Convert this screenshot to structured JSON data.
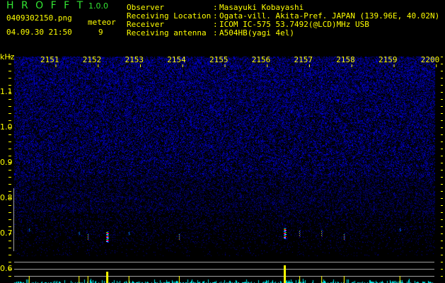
{
  "header": {
    "app_name": "H R O F F T",
    "version": "1.0.0",
    "filename": "0409302150.png",
    "datetime": "04.09.30 21:50",
    "meteor_label": "meteor",
    "meteor_count": "9"
  },
  "info": [
    {
      "label": "Observer",
      "value": "Masayuki Kobayashi"
    },
    {
      "label": "Receiving Location",
      "value": "Ogata-vill. Akita-Pref. JAPAN (139.96E, 40.02N)"
    },
    {
      "label": "Receiver",
      "value": "ICOM IC-575 53.7492(@LCD)MHz USB"
    },
    {
      "label": "Receiving antenna",
      "value": "A504HB(yagi 4el)"
    }
  ],
  "colors": {
    "text": "#ffff00",
    "title": "#33e533",
    "noise": "#1a1aff",
    "strength_bar": "#ffff00",
    "background_bar": "#00e5e5",
    "grid": "#a0a0a0"
  },
  "chart_data": {
    "type": "heatmap",
    "ylabel": "kHz",
    "x_ticks": [
      "2151",
      "2152",
      "2153",
      "2154",
      "2155",
      "2156",
      "2157",
      "2158",
      "2159",
      "2200"
    ],
    "y_ticks": [
      "1.1",
      "1.0",
      "0.9",
      "0.8",
      "0.7",
      "0.6"
    ],
    "ylim": [
      0.56,
      1.2
    ],
    "echoes": [
      {
        "time": 2150.36,
        "freq": 0.71,
        "strength": "weak"
      },
      {
        "time": 2151.54,
        "freq": 0.7,
        "strength": "weak"
      },
      {
        "time": 2151.75,
        "freq": 0.69,
        "strength": "medium"
      },
      {
        "time": 2152.19,
        "freq": 0.69,
        "strength": "strong"
      },
      {
        "time": 2152.72,
        "freq": 0.7,
        "strength": "weak"
      },
      {
        "time": 2153.91,
        "freq": 0.69,
        "strength": "medium"
      },
      {
        "time": 2156.39,
        "freq": 0.7,
        "strength": "strong"
      },
      {
        "time": 2156.76,
        "freq": 0.7,
        "strength": "medium"
      },
      {
        "time": 2157.28,
        "freq": 0.7,
        "strength": "medium"
      },
      {
        "time": 2157.81,
        "freq": 0.69,
        "strength": "medium"
      },
      {
        "time": 2159.13,
        "freq": 0.71,
        "strength": "weak"
      }
    ]
  }
}
